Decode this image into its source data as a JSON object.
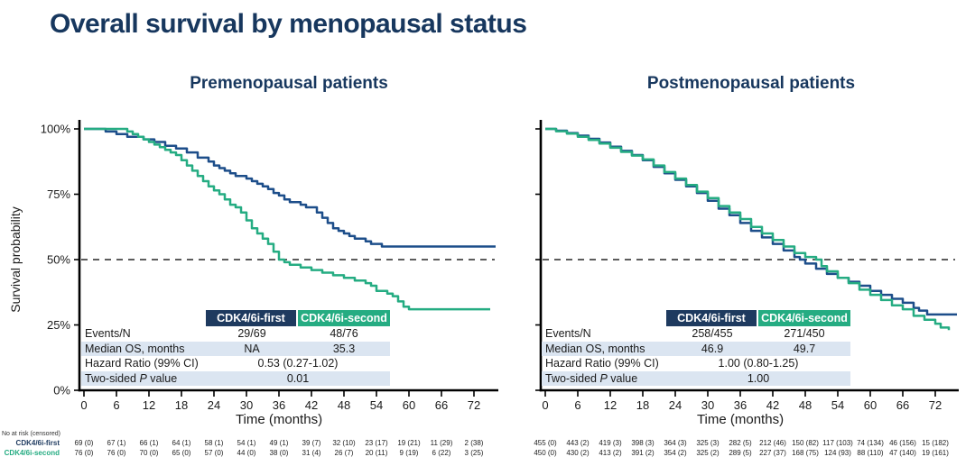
{
  "slide_title": "Overall survival by menopausal status",
  "colors": {
    "title_navy": "#17375e",
    "group_first_navy": "#1e3a5f",
    "group_second_green": "#25ac82",
    "curve_blue": "#1d4e8a",
    "curve_green": "#25ac82",
    "shaded_row": "#dbe5f1",
    "reference_dash": "#262626"
  },
  "groups": {
    "first": {
      "label": "CDK4/6i-first"
    },
    "second": {
      "label": "CDK4/6i-second"
    }
  },
  "axes": {
    "x_label": "Time (months)",
    "x_ticks": [
      0,
      6,
      12,
      18,
      24,
      30,
      36,
      42,
      48,
      54,
      60,
      66,
      72
    ],
    "y_label": "Survival probability",
    "y_ticks_pct": [
      0,
      25,
      50,
      75,
      100
    ],
    "y_tick_labels": [
      "0%",
      "25%",
      "50%",
      "75%",
      "100%"
    ],
    "reference_line_pct": 50
  },
  "at_risk_header": "No at risk (censored)",
  "panels": [
    {
      "title": "Premenopausal patients",
      "stats": {
        "events_label": "Events/N",
        "events_first": "29/69",
        "events_second": "48/76",
        "median_label": "Median OS, months",
        "median_first": "NA",
        "median_second": "35.3",
        "hr_label": "Hazard Ratio (99% CI)",
        "hr_value": "0.53 (0.27-1.02)",
        "p_label_pre": "Two-sided ",
        "p_label_it": "P",
        "p_label_post": " value",
        "p_value": "0.01"
      },
      "at_risk": {
        "first": [
          "69 (0)",
          "67 (1)",
          "66 (1)",
          "64 (1)",
          "58 (1)",
          "54 (1)",
          "49 (1)",
          "39 (7)",
          "32 (10)",
          "23 (17)",
          "19 (21)",
          "11 (29)",
          "2 (38)"
        ],
        "second": [
          "76 (0)",
          "76 (0)",
          "70 (0)",
          "65 (0)",
          "57 (0)",
          "44 (0)",
          "38 (0)",
          "31 (4)",
          "26 (7)",
          "20 (11)",
          "9 (19)",
          "6 (22)",
          "3 (25)"
        ]
      }
    },
    {
      "title": "Postmenopausal patients",
      "stats": {
        "events_label": "Events/N",
        "events_first": "258/455",
        "events_second": "271/450",
        "median_label": "Median OS, months",
        "median_first": "46.9",
        "median_second": "49.7",
        "hr_label": "Hazard Ratio (99% CI)",
        "hr_value": "1.00 (0.80-1.25)",
        "p_label_pre": "Two-sided ",
        "p_label_it": "P",
        "p_label_post": " value",
        "p_value": "1.00"
      },
      "at_risk": {
        "first": [
          "455 (0)",
          "443 (2)",
          "419 (3)",
          "398 (3)",
          "364 (3)",
          "325 (3)",
          "282 (5)",
          "212 (46)",
          "150 (82)",
          "117 (103)",
          "74 (134)",
          "46 (156)",
          "15 (182)"
        ],
        "second": [
          "450 (0)",
          "430 (2)",
          "413 (2)",
          "391 (2)",
          "354 (2)",
          "325 (2)",
          "289 (5)",
          "227 (37)",
          "168 (75)",
          "124 (93)",
          "88 (110)",
          "47 (140)",
          "19 (161)"
        ]
      }
    }
  ],
  "chart_data": [
    {
      "type": "line",
      "subtype": "kaplan-meier-step",
      "title": "Premenopausal patients",
      "xlabel": "Time (months)",
      "ylabel": "Survival probability",
      "xlim": [
        0,
        78
      ],
      "ylim": [
        0,
        100
      ],
      "x_ticks": [
        0,
        6,
        12,
        18,
        24,
        30,
        36,
        42,
        48,
        54,
        60,
        66,
        72
      ],
      "y_ticks": [
        0,
        25,
        50,
        75,
        100
      ],
      "reference_line_y": 50,
      "grid": false,
      "series": [
        {
          "name": "CDK4/6i-first",
          "color": "#1d4e8a",
          "step_points": [
            [
              0,
              100
            ],
            [
              4,
              99
            ],
            [
              6,
              98
            ],
            [
              8,
              97
            ],
            [
              11,
              96
            ],
            [
              13,
              95
            ],
            [
              15,
              93.5
            ],
            [
              17,
              92.5
            ],
            [
              19,
              91
            ],
            [
              21,
              89
            ],
            [
              23,
              87.5
            ],
            [
              24,
              86
            ],
            [
              25,
              85
            ],
            [
              26,
              84
            ],
            [
              27,
              83
            ],
            [
              28,
              82
            ],
            [
              30,
              81
            ],
            [
              31,
              80
            ],
            [
              32,
              79
            ],
            [
              33,
              78
            ],
            [
              34,
              77
            ],
            [
              35,
              75.5
            ],
            [
              36,
              74.5
            ],
            [
              37,
              73
            ],
            [
              38,
              72
            ],
            [
              40,
              71
            ],
            [
              41,
              70
            ],
            [
              43,
              68
            ],
            [
              44,
              66
            ],
            [
              45,
              64
            ],
            [
              46,
              62
            ],
            [
              47,
              61
            ],
            [
              48,
              60
            ],
            [
              49,
              59
            ],
            [
              50,
              58
            ],
            [
              52,
              57
            ],
            [
              53,
              56
            ],
            [
              55,
              55
            ],
            [
              76,
              55
            ]
          ]
        },
        {
          "name": "CDK4/6i-second",
          "color": "#25ac82",
          "step_points": [
            [
              0,
              100
            ],
            [
              8,
              99
            ],
            [
              9,
              98
            ],
            [
              10,
              97
            ],
            [
              11,
              96
            ],
            [
              12,
              95
            ],
            [
              13,
              94
            ],
            [
              14,
              93
            ],
            [
              15,
              92
            ],
            [
              16,
              91
            ],
            [
              17,
              90
            ],
            [
              18,
              88
            ],
            [
              19,
              86
            ],
            [
              20,
              84
            ],
            [
              21,
              82
            ],
            [
              22,
              80
            ],
            [
              23,
              78
            ],
            [
              24,
              76.5
            ],
            [
              25,
              75
            ],
            [
              26,
              73
            ],
            [
              27,
              71
            ],
            [
              28,
              70
            ],
            [
              29,
              68
            ],
            [
              30,
              65
            ],
            [
              31,
              62
            ],
            [
              32,
              60
            ],
            [
              33,
              58
            ],
            [
              34,
              56
            ],
            [
              35,
              53
            ],
            [
              36,
              50
            ],
            [
              37,
              49
            ],
            [
              38,
              48
            ],
            [
              40,
              47
            ],
            [
              42,
              46
            ],
            [
              44,
              45
            ],
            [
              46,
              44
            ],
            [
              48,
              43
            ],
            [
              50,
              42
            ],
            [
              52,
              41
            ],
            [
              53,
              40
            ],
            [
              54,
              38
            ],
            [
              56,
              37
            ],
            [
              57,
              36
            ],
            [
              58,
              34
            ],
            [
              59,
              32
            ],
            [
              60,
              31
            ],
            [
              75,
              31
            ]
          ]
        }
      ]
    },
    {
      "type": "line",
      "subtype": "kaplan-meier-step",
      "title": "Postmenopausal patients",
      "xlabel": "Time (months)",
      "ylabel": "",
      "xlim": [
        0,
        78
      ],
      "ylim": [
        0,
        100
      ],
      "x_ticks": [
        0,
        6,
        12,
        18,
        24,
        30,
        36,
        42,
        48,
        54,
        60,
        66,
        72
      ],
      "y_ticks": [
        0,
        25,
        50,
        75,
        100
      ],
      "reference_line_y": 50,
      "grid": false,
      "series": [
        {
          "name": "CDK4/6i-first",
          "color": "#1d4e8a",
          "step_points": [
            [
              0,
              100
            ],
            [
              2,
              99.3
            ],
            [
              4,
              98.4
            ],
            [
              6,
              97.4
            ],
            [
              8,
              96.2
            ],
            [
              10,
              94.8
            ],
            [
              12,
              93.2
            ],
            [
              14,
              91.6
            ],
            [
              16,
              90
            ],
            [
              18,
              88
            ],
            [
              20,
              85.5
            ],
            [
              22,
              83
            ],
            [
              24,
              80.5
            ],
            [
              26,
              78
            ],
            [
              28,
              75.5
            ],
            [
              30,
              72.5
            ],
            [
              32,
              69.5
            ],
            [
              34,
              67
            ],
            [
              36,
              64
            ],
            [
              38,
              61
            ],
            [
              40,
              58.5
            ],
            [
              42,
              56
            ],
            [
              44,
              53.5
            ],
            [
              46,
              51
            ],
            [
              47,
              50
            ],
            [
              48,
              48.5
            ],
            [
              50,
              46.5
            ],
            [
              52,
              44.5
            ],
            [
              54,
              43
            ],
            [
              56,
              41.5
            ],
            [
              58,
              40
            ],
            [
              60,
              38
            ],
            [
              62,
              36.5
            ],
            [
              64,
              35
            ],
            [
              66,
              33.5
            ],
            [
              68,
              31.5
            ],
            [
              69,
              30.5
            ],
            [
              70.5,
              29
            ],
            [
              76,
              29
            ]
          ]
        },
        {
          "name": "CDK4/6i-second",
          "color": "#25ac82",
          "step_points": [
            [
              0,
              100
            ],
            [
              2,
              99.1
            ],
            [
              4,
              98.2
            ],
            [
              6,
              97
            ],
            [
              8,
              95.8
            ],
            [
              10,
              94.4
            ],
            [
              12,
              92.8
            ],
            [
              14,
              91.2
            ],
            [
              16,
              89.8
            ],
            [
              18,
              88.3
            ],
            [
              20,
              86
            ],
            [
              22,
              83.5
            ],
            [
              24,
              81
            ],
            [
              26,
              78.5
            ],
            [
              28,
              76
            ],
            [
              30,
              73.5
            ],
            [
              32,
              70.5
            ],
            [
              34,
              68
            ],
            [
              36,
              65.5
            ],
            [
              38,
              62.5
            ],
            [
              40,
              60
            ],
            [
              42,
              57.5
            ],
            [
              44,
              55
            ],
            [
              46,
              52.5
            ],
            [
              48,
              51
            ],
            [
              50,
              50
            ],
            [
              51,
              47.5
            ],
            [
              52,
              45.5
            ],
            [
              54,
              43
            ],
            [
              56,
              41
            ],
            [
              58,
              38.5
            ],
            [
              60,
              36.5
            ],
            [
              62,
              34.5
            ],
            [
              64,
              32.5
            ],
            [
              66,
              31
            ],
            [
              68,
              28.5
            ],
            [
              70,
              27
            ],
            [
              72,
              25.5
            ],
            [
              73,
              24
            ],
            [
              74.5,
              23
            ]
          ]
        }
      ]
    }
  ]
}
